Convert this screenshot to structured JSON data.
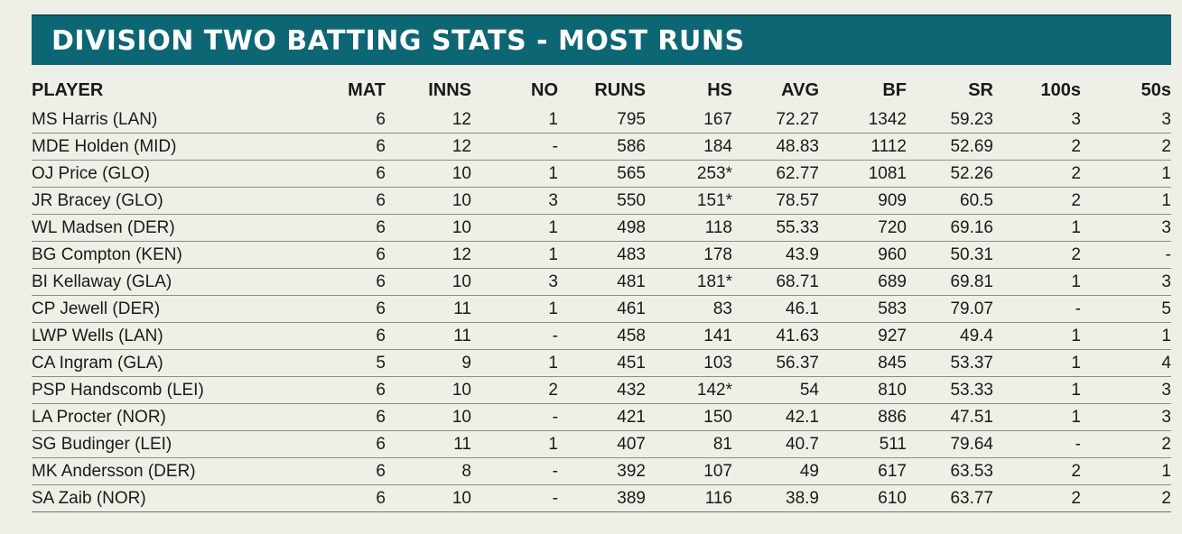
{
  "title": "DIVISION TWO BATTING STATS - MOST RUNS",
  "colors": {
    "banner": "#0d6674",
    "background": "#eef0e8",
    "text": "#1a1a1a"
  },
  "columns": [
    "PLAYER",
    "MAT",
    "INNS",
    "NO",
    "RUNS",
    "HS",
    "AVG",
    "BF",
    "SR",
    "100s",
    "50s"
  ],
  "rows": [
    [
      "MS Harris (LAN)",
      "6",
      "12",
      "1",
      "795",
      "167",
      "72.27",
      "1342",
      "59.23",
      "3",
      "3"
    ],
    [
      "MDE Holden (MID)",
      "6",
      "12",
      "-",
      "586",
      "184",
      "48.83",
      "1112",
      "52.69",
      "2",
      "2"
    ],
    [
      "OJ Price (GLO)",
      "6",
      "10",
      "1",
      "565",
      "253*",
      "62.77",
      "1081",
      "52.26",
      "2",
      "1"
    ],
    [
      "JR Bracey (GLO)",
      "6",
      "10",
      "3",
      "550",
      "151*",
      "78.57",
      "909",
      "60.5",
      "2",
      "1"
    ],
    [
      "WL Madsen (DER)",
      "6",
      "10",
      "1",
      "498",
      "118",
      "55.33",
      "720",
      "69.16",
      "1",
      "3"
    ],
    [
      "BG Compton (KEN)",
      "6",
      "12",
      "1",
      "483",
      "178",
      "43.9",
      "960",
      "50.31",
      "2",
      "-"
    ],
    [
      "BI Kellaway (GLA)",
      "6",
      "10",
      "3",
      "481",
      "181*",
      "68.71",
      "689",
      "69.81",
      "1",
      "3"
    ],
    [
      "CP Jewell (DER)",
      "6",
      "11",
      "1",
      "461",
      "83",
      "46.1",
      "583",
      "79.07",
      "-",
      "5"
    ],
    [
      "LWP Wells (LAN)",
      "6",
      "11",
      "-",
      "458",
      "141",
      "41.63",
      "927",
      "49.4",
      "1",
      "1"
    ],
    [
      "CA Ingram (GLA)",
      "5",
      "9",
      "1",
      "451",
      "103",
      "56.37",
      "845",
      "53.37",
      "1",
      "4"
    ],
    [
      "PSP Handscomb (LEI)",
      "6",
      "10",
      "2",
      "432",
      "142*",
      "54",
      "810",
      "53.33",
      "1",
      "3"
    ],
    [
      "LA Procter (NOR)",
      "6",
      "10",
      "-",
      "421",
      "150",
      "42.1",
      "886",
      "47.51",
      "1",
      "3"
    ],
    [
      "SG Budinger (LEI)",
      "6",
      "11",
      "1",
      "407",
      "81",
      "40.7",
      "511",
      "79.64",
      "-",
      "2"
    ],
    [
      "MK Andersson (DER)",
      "6",
      "8",
      "-",
      "392",
      "107",
      "49",
      "617",
      "63.53",
      "2",
      "1"
    ],
    [
      "SA Zaib (NOR)",
      "6",
      "10",
      "-",
      "389",
      "116",
      "38.9",
      "610",
      "63.77",
      "2",
      "2"
    ]
  ]
}
